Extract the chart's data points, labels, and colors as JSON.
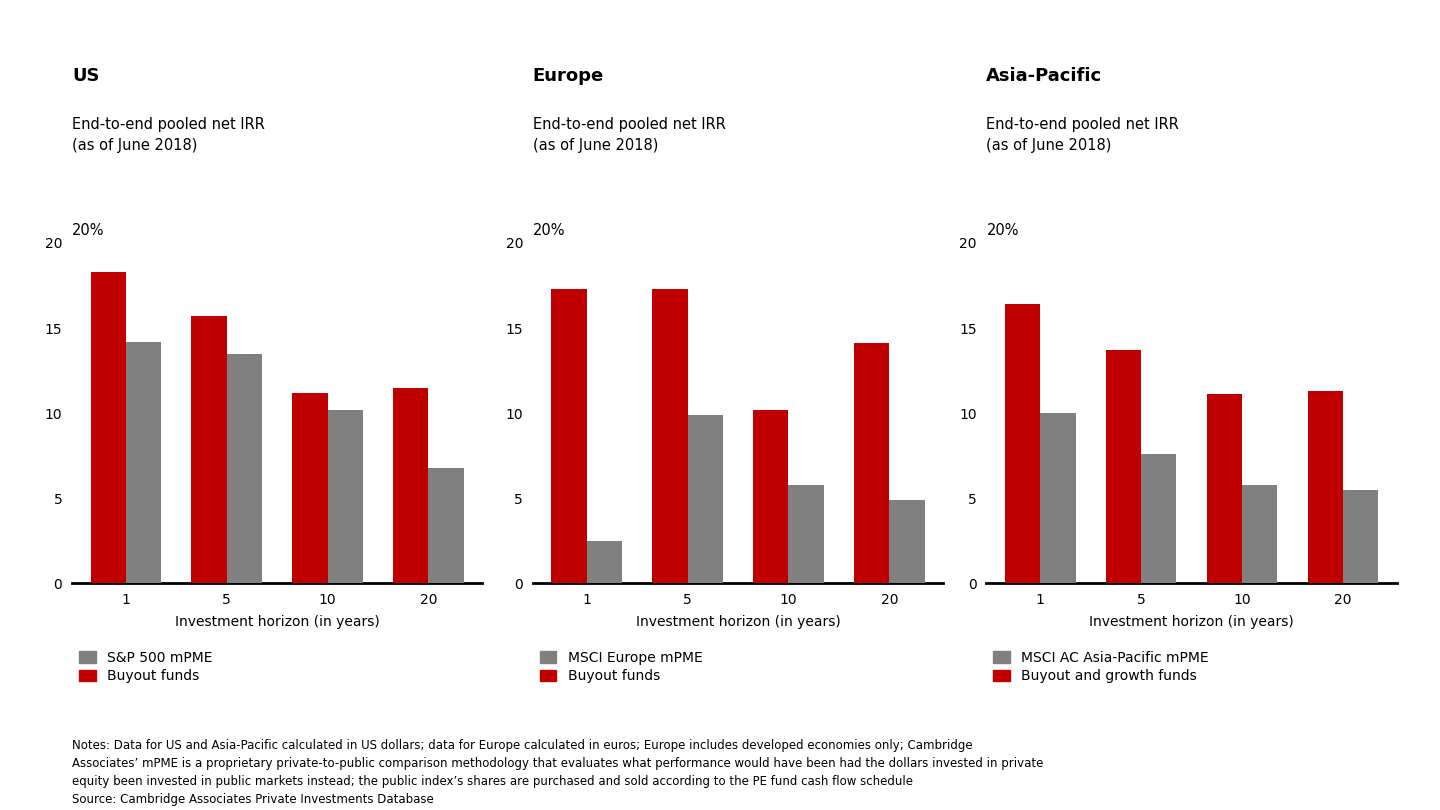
{
  "panels": [
    {
      "title": "US",
      "subtitle": "End-to-end pooled net IRR\n(as of June 2018)",
      "ylabel_text": "20%",
      "horizons": [
        "1",
        "5",
        "10",
        "20"
      ],
      "buyout": [
        18.3,
        15.7,
        11.2,
        11.5
      ],
      "market": [
        14.2,
        13.5,
        10.2,
        6.8
      ],
      "legend_market": "S&P 500 mPME",
      "legend_buyout": "Buyout funds"
    },
    {
      "title": "Europe",
      "subtitle": "End-to-end pooled net IRR\n(as of June 2018)",
      "ylabel_text": "20%",
      "horizons": [
        "1",
        "5",
        "10",
        "20"
      ],
      "buyout": [
        17.3,
        17.3,
        10.2,
        14.1
      ],
      "market": [
        2.5,
        9.9,
        5.8,
        4.9
      ],
      "legend_market": "MSCI Europe mPME",
      "legend_buyout": "Buyout funds"
    },
    {
      "title": "Asia-Pacific",
      "subtitle": "End-to-end pooled net IRR\n(as of June 2018)",
      "ylabel_text": "20%",
      "horizons": [
        "1",
        "5",
        "10",
        "20"
      ],
      "buyout": [
        16.4,
        13.7,
        11.1,
        11.3
      ],
      "market": [
        10.0,
        7.6,
        5.8,
        5.5
      ],
      "legend_market": "MSCI AC Asia-Pacific mPME",
      "legend_buyout": "Buyout and growth funds"
    }
  ],
  "bar_color_buyout": "#c00000",
  "bar_color_market": "#808080",
  "ylim": [
    0,
    20
  ],
  "yticks": [
    0,
    5,
    10,
    15,
    20
  ],
  "xlabel": "Investment horizon (in years)",
  "notes": "Notes: Data for US and Asia-Pacific calculated in US dollars; data for Europe calculated in euros; Europe includes developed economies only; Cambridge\nAssociates’ mPME is a proprietary private-to-public comparison methodology that evaluates what performance would have been had the dollars invested in private\nequity been invested in public markets instead; the public index’s shares are purchased and sold according to the PE fund cash flow schedule\nSource: Cambridge Associates Private Investments Database",
  "background_color": "#ffffff",
  "bar_width": 0.35,
  "title_fontsize": 13,
  "subtitle_fontsize": 10.5,
  "ylabel_fontsize": 10.5,
  "tick_fontsize": 10,
  "label_fontsize": 10,
  "legend_fontsize": 10,
  "notes_fontsize": 8.5
}
